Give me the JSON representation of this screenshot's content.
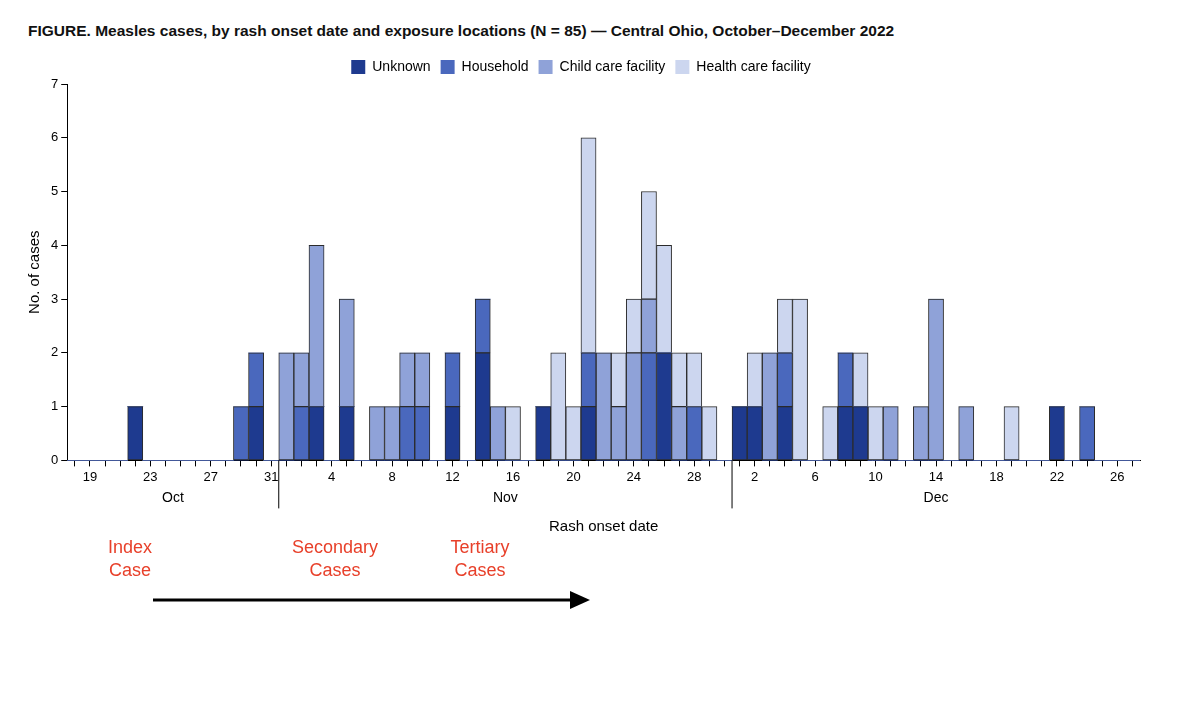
{
  "chart_data": {
    "type": "bar",
    "title": "FIGURE. Measles cases, by rash onset date and exposure locations (N = 85) — Central Ohio, October–December 2022",
    "x_label": "Rash onset date",
    "y_label": "No. of cases",
    "categories": [
      null,
      "19",
      null,
      null,
      null,
      "23",
      null,
      null,
      null,
      "27",
      null,
      null,
      null,
      "31",
      null,
      null,
      null,
      "4",
      null,
      null,
      null,
      "8",
      null,
      null,
      null,
      "12",
      null,
      null,
      null,
      "16",
      null,
      null,
      null,
      "20",
      null,
      null,
      null,
      "24",
      null,
      null,
      null,
      "28",
      null,
      null,
      null,
      "2",
      null,
      null,
      null,
      "6",
      null,
      null,
      null,
      "10",
      null,
      null,
      null,
      "14",
      null,
      null,
      null,
      "18",
      null,
      null,
      null,
      "22",
      null,
      null,
      null,
      "26",
      null
    ],
    "groups": [
      {
        "label": "Oct",
        "count": 14
      },
      {
        "label": "Nov",
        "count": 30
      },
      {
        "label": "Dec",
        "count": 27
      }
    ],
    "series": [
      {
        "name": "Unknown",
        "color": "#1e3a8f",
        "values": [
          0,
          0,
          0,
          0,
          1,
          0,
          0,
          0,
          0,
          0,
          0,
          0,
          1,
          0,
          0,
          0,
          1,
          0,
          1,
          0,
          0,
          0,
          0,
          0,
          0,
          1,
          0,
          2,
          0,
          0,
          0,
          1,
          0,
          0,
          1,
          0,
          0,
          0,
          0,
          2,
          0,
          0,
          0,
          0,
          1,
          1,
          0,
          1,
          0,
          0,
          0,
          1,
          1,
          0,
          0,
          0,
          0,
          0,
          0,
          0,
          0,
          0,
          0,
          0,
          0,
          1,
          0,
          0,
          0,
          0,
          0
        ]
      },
      {
        "name": "Household",
        "color": "#4a68bd",
        "values": [
          0,
          0,
          0,
          0,
          0,
          0,
          0,
          0,
          0,
          0,
          0,
          1,
          1,
          0,
          0,
          1,
          0,
          0,
          0,
          0,
          0,
          0,
          1,
          1,
          0,
          1,
          0,
          1,
          0,
          0,
          0,
          0,
          0,
          0,
          1,
          0,
          0,
          0,
          2,
          0,
          0,
          1,
          0,
          0,
          0,
          0,
          0,
          1,
          0,
          0,
          0,
          1,
          0,
          0,
          0,
          0,
          0,
          0,
          0,
          0,
          0,
          0,
          0,
          0,
          0,
          0,
          0,
          1,
          0,
          0,
          0
        ]
      },
      {
        "name": "Child care facility",
        "color": "#8fa2d8",
        "values": [
          0,
          0,
          0,
          0,
          0,
          0,
          0,
          0,
          0,
          0,
          0,
          0,
          0,
          0,
          2,
          1,
          3,
          0,
          2,
          0,
          1,
          1,
          1,
          1,
          0,
          0,
          0,
          0,
          1,
          0,
          0,
          0,
          0,
          0,
          0,
          2,
          1,
          2,
          1,
          0,
          1,
          0,
          0,
          0,
          0,
          0,
          2,
          0,
          0,
          0,
          0,
          0,
          0,
          0,
          1,
          0,
          1,
          3,
          0,
          1,
          0,
          0,
          0,
          0,
          0,
          0,
          0,
          0,
          0,
          0,
          0
        ]
      },
      {
        "name": "Health care facility",
        "color": "#ccd6ef",
        "values": [
          0,
          0,
          0,
          0,
          0,
          0,
          0,
          0,
          0,
          0,
          0,
          0,
          0,
          0,
          0,
          0,
          0,
          0,
          0,
          0,
          0,
          0,
          0,
          0,
          0,
          0,
          0,
          0,
          0,
          1,
          0,
          0,
          2,
          1,
          4,
          0,
          1,
          1,
          2,
          2,
          1,
          1,
          1,
          0,
          0,
          1,
          0,
          1,
          3,
          0,
          1,
          0,
          1,
          1,
          0,
          0,
          0,
          0,
          0,
          0,
          0,
          0,
          1,
          0,
          0,
          0,
          0,
          0,
          0,
          0,
          0
        ]
      }
    ],
    "ylim": [
      0,
      7
    ],
    "yticks": [
      0,
      1,
      2,
      3,
      4,
      5,
      6,
      7
    ],
    "stacked": true,
    "legend": "top",
    "grid": false,
    "annotations": [
      "Index Case",
      "Secondary Cases",
      "Tertiary Cases"
    ]
  }
}
